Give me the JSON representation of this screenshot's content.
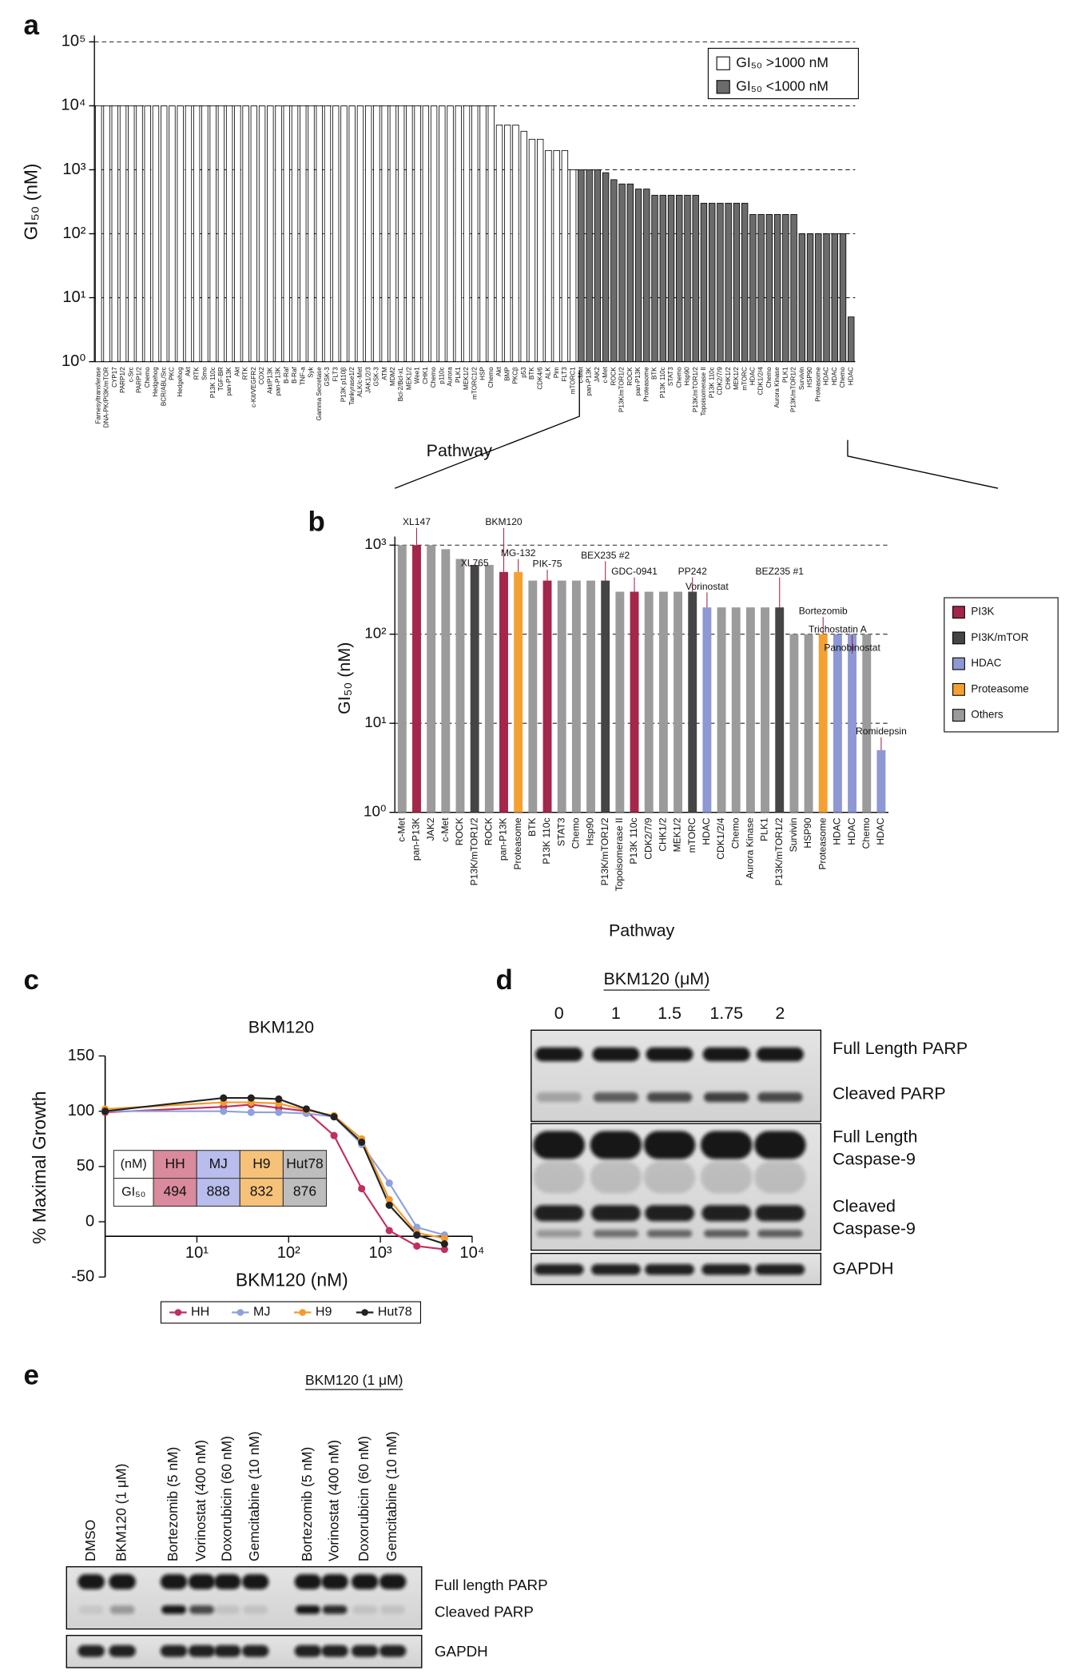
{
  "chart_data": [
    {
      "panel": "a",
      "type": "bar",
      "ylabel": "GI₅₀ (nM)",
      "xlabel": "Pathway",
      "log_y": true,
      "grid": true,
      "legend": "upper right",
      "ylim": [
        1,
        100000
      ],
      "yticks": [
        {
          "value": 1,
          "label": "10⁰"
        },
        {
          "value": 10,
          "label": "10¹"
        },
        {
          "value": 100,
          "label": "10²"
        },
        {
          "value": 1000,
          "label": "10³"
        },
        {
          "value": 10000,
          "label": "10⁴"
        },
        {
          "value": 100000,
          "label": "10⁵"
        }
      ],
      "categories": [
        "Farnesyltransferase",
        "DNA-PK/PI3K/mTOR",
        "CYP17",
        "PARP1/2",
        "c-Src",
        "PARP1/2",
        "Chemo",
        "Hedgehog",
        "BCR/ABL/Src",
        "PKC",
        "Hedgehog",
        "Akt",
        "RTK",
        "Smo",
        "P13K 110c",
        "TGF-BR",
        "pan-P13K",
        "Akt",
        "RTK",
        "c-Kit/VEGFR2",
        "COX2",
        "Akt/P13K",
        "pan-P13K",
        "B-Raf",
        "B-Raf",
        "TNF-a",
        "Syk",
        "Gamma Secretase",
        "GSK-3",
        "FLT3",
        "P13K p110β",
        "Tankyrase1/2",
        "ALK/c-Met",
        "JAK1/2/3",
        "GSK-3",
        "ATM",
        "MDM2",
        "Bcl-2/Bcl-xL",
        "MEK1/2",
        "Wee1",
        "CHK1",
        "Chemo",
        "p110c",
        "Aurora",
        "PLK1",
        "MEK1/2",
        "mTORC1/2",
        "HSP",
        "Chemo",
        "Akt",
        "BMP",
        "PKCβ",
        "p53",
        "BTK",
        "CDK4/6",
        "ALK",
        "Pim",
        "FLT3",
        "mTORC1",
        "c-Met",
        "pan-P13K",
        "JAK2",
        "c-Met",
        "ROCK",
        "P13K/mTOR1/2",
        "ROCK",
        "pan-P13K",
        "Proteasome",
        "BTK",
        "P13K 110c",
        "STAT3",
        "Chemo",
        "Hsp90",
        "P13K/mTOR1/2",
        "Topoisomerase II",
        "P13K 110c",
        "CDK2/7/9",
        "CHK1/2",
        "MEK1/2",
        "mTORC",
        "HDAC",
        "CDK1/2/4",
        "Chemo",
        "Aurora Kinase",
        "PLK1",
        "P13K/mTOR1/2",
        "Survivin",
        "HSP90",
        "Proteasome",
        "HDAC",
        "HDAC",
        "Chemo",
        "HDAC"
      ],
      "series": [
        {
          "name": "GI₅₀ >1000 nM",
          "color": "#ffffff",
          "values": [
            10000,
            10000,
            10000,
            10000,
            10000,
            10000,
            10000,
            10000,
            10000,
            10000,
            10000,
            10000,
            10000,
            10000,
            10000,
            10000,
            10000,
            10000,
            10000,
            10000,
            10000,
            10000,
            10000,
            10000,
            10000,
            10000,
            10000,
            10000,
            10000,
            10000,
            10000,
            10000,
            10000,
            10000,
            10000,
            10000,
            10000,
            10000,
            10000,
            10000,
            10000,
            10000,
            10000,
            10000,
            10000,
            10000,
            10000,
            10000,
            10000,
            5000,
            5000,
            5000,
            4000,
            3000,
            3000,
            2000,
            2000,
            2000,
            1000,
            null,
            null,
            null,
            null,
            null,
            null,
            null,
            null,
            null,
            null,
            null,
            null,
            null,
            null,
            null,
            null,
            null,
            null,
            null,
            null,
            null,
            null,
            null,
            null,
            null,
            null,
            null,
            null,
            null,
            null,
            null,
            null,
            null,
            null
          ]
        },
        {
          "name": "GI₅₀ <1000 nM",
          "color": "#6b6b6b",
          "values": [
            null,
            null,
            null,
            null,
            null,
            null,
            null,
            null,
            null,
            null,
            null,
            null,
            null,
            null,
            null,
            null,
            null,
            null,
            null,
            null,
            null,
            null,
            null,
            null,
            null,
            null,
            null,
            null,
            null,
            null,
            null,
            null,
            null,
            null,
            null,
            null,
            null,
            null,
            null,
            null,
            null,
            null,
            null,
            null,
            null,
            null,
            null,
            null,
            null,
            null,
            null,
            null,
            null,
            null,
            null,
            null,
            null,
            null,
            null,
            1000,
            1000,
            1000,
            900,
            700,
            600,
            600,
            500,
            500,
            400,
            400,
            400,
            400,
            400,
            400,
            300,
            300,
            300,
            300,
            300,
            300,
            200,
            200,
            200,
            200,
            200,
            200,
            100,
            100,
            100,
            100,
            100,
            100,
            5
          ]
        }
      ]
    },
    {
      "panel": "b",
      "type": "bar",
      "ylabel": "GI₅₀ (nM)",
      "xlabel": "Pathway",
      "log_y": true,
      "grid": true,
      "legend": "right",
      "ylim": [
        1,
        1000
      ],
      "yticks": [
        {
          "value": 1,
          "label": "10⁰"
        },
        {
          "value": 10,
          "label": "10¹"
        },
        {
          "value": 100,
          "label": "10²"
        },
        {
          "value": 1000,
          "label": "10³"
        }
      ],
      "categories": [
        "c-Met",
        "pan-P13K",
        "JAK2",
        "c-Met",
        "ROCK",
        "P13K/mTOR1/2",
        "ROCK",
        "pan-P13K",
        "Proteasome",
        "BTK",
        "P13K 110c",
        "STAT3",
        "Chemo",
        "Hsp90",
        "P13K/mTOR1/2",
        "Topoisomerase II",
        "P13K 110c",
        "CDK2/7/9",
        "CHK1/2",
        "MEK1/2",
        "mTORC",
        "HDAC",
        "CDK1/2/4",
        "Chemo",
        "Aurora Kinase",
        "PLK1",
        "P13K/mTOR1/2",
        "Survivin",
        "HSP90",
        "Proteasome",
        "HDAC",
        "HDAC",
        "Chemo",
        "HDAC"
      ],
      "series": [
        {
          "name": "PI3K",
          "color": "#a4264a",
          "values": [
            null,
            1000,
            null,
            null,
            null,
            null,
            null,
            500,
            null,
            null,
            400,
            null,
            null,
            null,
            null,
            null,
            300,
            null,
            null,
            null,
            null,
            null,
            null,
            null,
            null,
            null,
            null,
            null,
            null,
            null,
            null,
            null,
            null,
            null
          ]
        },
        {
          "name": "PI3K/mTOR",
          "color": "#454545",
          "values": [
            null,
            null,
            null,
            null,
            null,
            600,
            null,
            null,
            null,
            null,
            null,
            null,
            null,
            null,
            400,
            null,
            null,
            null,
            null,
            null,
            300,
            null,
            null,
            null,
            null,
            null,
            200,
            null,
            null,
            null,
            null,
            null,
            null,
            null
          ]
        },
        {
          "name": "HDAC",
          "color": "#8d98d4",
          "values": [
            null,
            null,
            null,
            null,
            null,
            null,
            null,
            null,
            null,
            null,
            null,
            null,
            null,
            null,
            null,
            null,
            null,
            null,
            null,
            null,
            null,
            200,
            null,
            null,
            null,
            null,
            null,
            null,
            null,
            null,
            100,
            100,
            null,
            5
          ]
        },
        {
          "name": "Proteasome",
          "color": "#f5a033",
          "values": [
            null,
            null,
            null,
            null,
            null,
            null,
            null,
            null,
            500,
            null,
            null,
            null,
            null,
            null,
            null,
            null,
            null,
            null,
            null,
            null,
            null,
            null,
            null,
            null,
            null,
            null,
            null,
            null,
            null,
            100,
            null,
            null,
            null,
            null
          ]
        },
        {
          "name": "Others",
          "color": "#9b9b9b",
          "values": [
            1000,
            null,
            1000,
            900,
            700,
            null,
            600,
            null,
            null,
            400,
            null,
            400,
            400,
            400,
            null,
            300,
            null,
            300,
            300,
            300,
            null,
            null,
            200,
            200,
            200,
            200,
            null,
            100,
            100,
            null,
            null,
            null,
            100,
            null
          ]
        }
      ],
      "bar_labels": [
        null,
        "XL147",
        null,
        null,
        null,
        "XL765",
        null,
        "BKM120",
        "MG-132",
        null,
        "PIK-75",
        null,
        null,
        null,
        "BEX235 #2",
        null,
        "GDC-0941",
        null,
        null,
        null,
        "PP242",
        "Vorinostat",
        null,
        null,
        null,
        null,
        "BEZ235 #1",
        null,
        null,
        "Bortezomib",
        "Trichostatin A",
        "Panobinostat",
        null,
        "Romidepsin"
      ],
      "bar_label_color": "#a4264a"
    },
    {
      "panel": "c",
      "type": "line",
      "title": "BKM120",
      "xlabel": "BKM120 (nM)",
      "ylabel": "% Maximal Growth",
      "log_x": true,
      "legend": "bottom",
      "x": [
        1,
        19.5,
        39,
        78,
        156,
        312.5,
        625,
        1250,
        2500,
        5000
      ],
      "xlim": [
        1,
        10000
      ],
      "xticks": [
        {
          "value": 10,
          "label": "10¹"
        },
        {
          "value": 100,
          "label": "10²"
        },
        {
          "value": 1000,
          "label": "10³"
        },
        {
          "value": 10000,
          "label": "10⁴"
        }
      ],
      "ylim": [
        -50,
        150
      ],
      "yticks": [
        -50,
        0,
        50,
        100,
        150
      ],
      "series": [
        {
          "name": "HH",
          "color": "#c0305e",
          "values": [
            99,
            104,
            106,
            103,
            100,
            78,
            30,
            -8,
            -22,
            -25
          ]
        },
        {
          "name": "MJ",
          "color": "#8fa0dd",
          "values": [
            100,
            100,
            99,
            99,
            98,
            95,
            70,
            35,
            -5,
            -12
          ]
        },
        {
          "name": "H9",
          "color": "#f39a2c",
          "values": [
            102,
            108,
            108,
            107,
            101,
            96,
            75,
            20,
            -10,
            -15
          ]
        },
        {
          "name": "Hut78",
          "color": "#222222",
          "values": [
            100,
            112,
            112,
            111,
            102,
            95,
            72,
            15,
            -12,
            -20
          ]
        }
      ],
      "gi50_table": {
        "corner": "(nM)",
        "row_label": "GI₅₀",
        "colors": [
          "#d98a9c",
          "#b8bdeb",
          "#f6c27a",
          "#bdbdbd"
        ],
        "values": [
          494,
          888,
          832,
          876
        ]
      }
    }
  ],
  "blot_d": {
    "panel": "d",
    "title": "BKM120 (μM)",
    "lanes": [
      "0",
      "1",
      "1.5",
      "1.75",
      "2"
    ],
    "bands": [
      [
        "Full Length PARP"
      ],
      [
        "Cleaved PARP"
      ],
      [
        "Full Length",
        "Caspase-9"
      ],
      [
        "Cleaved",
        "Caspase-9"
      ],
      [
        "GAPDH"
      ]
    ]
  },
  "blot_e": {
    "panel": "e",
    "title": "BKM120 (1 μM)",
    "lanes": [
      "DMSO",
      "BKM120 (1 μM)",
      "Bortezomib (5 nM)",
      "Vorinostat (400 nM)",
      "Doxorubicin (60 nM)",
      "Gemcitabine (10 nM)",
      "Bortezomib (5 nM)",
      "Vorinostat (400 nM)",
      "Doxorubicin (60 nM)",
      "Gemcitabine (10 nM)"
    ],
    "bands": [
      "Full length PARP",
      "Cleaved PARP",
      "GAPDH"
    ]
  }
}
